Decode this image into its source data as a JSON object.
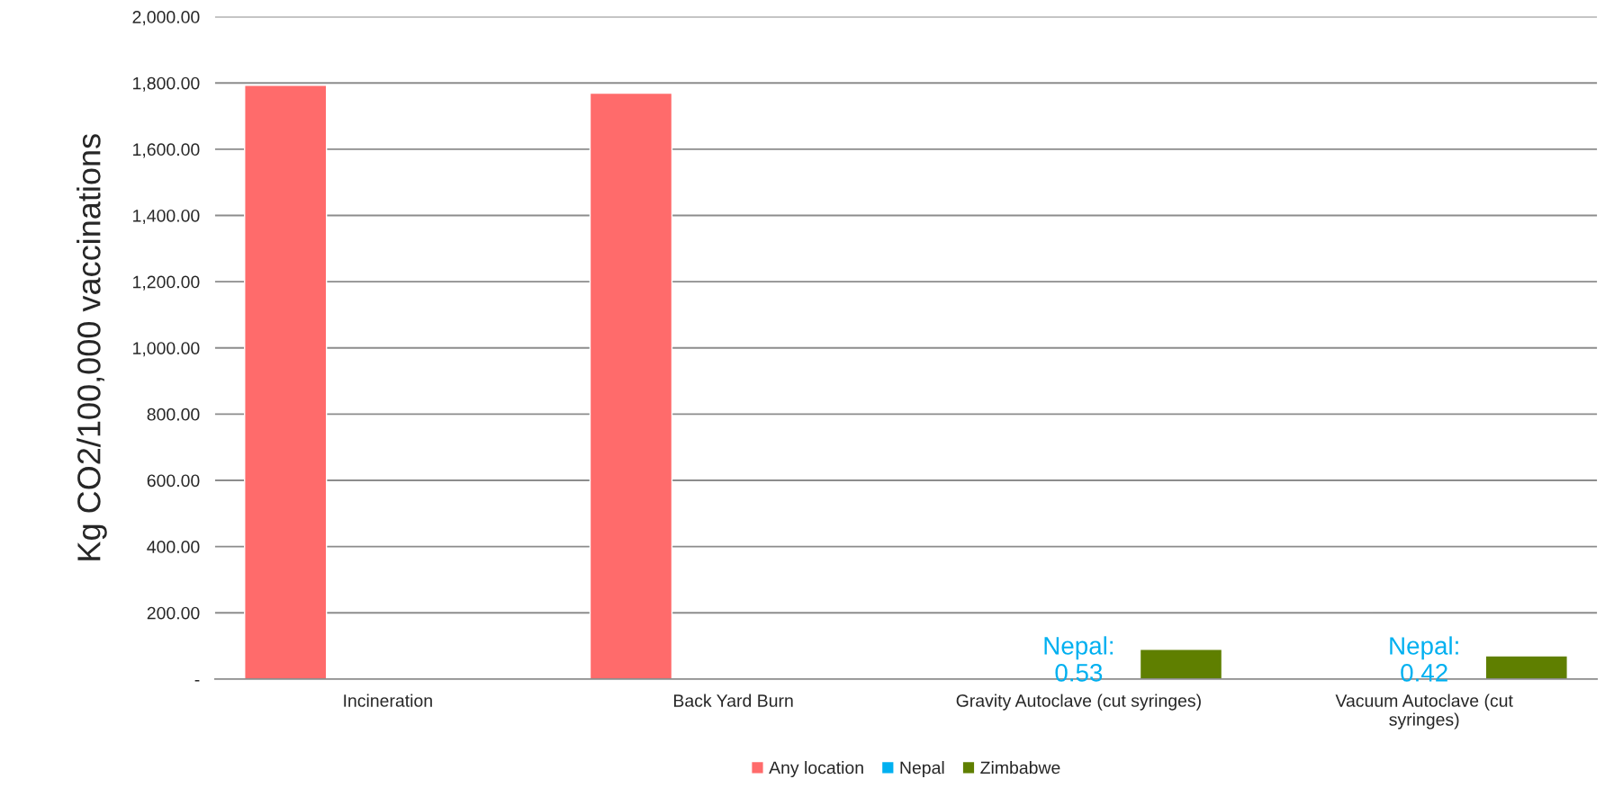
{
  "chart_data": {
    "type": "bar",
    "ylabel": "Kg CO2/100,000 vaccinations",
    "categories": [
      "Incineration",
      "Back Yard Burn",
      "Gravity Autoclave (cut syringes)",
      "Vacuum Autoclave (cut\nsyringes)"
    ],
    "series": [
      {
        "name": "Any location",
        "color": "#ff6b6b",
        "values": [
          1793,
          1769,
          null,
          null
        ]
      },
      {
        "name": "Nepal",
        "color": "#00b0f0",
        "values": [
          null,
          null,
          0.53,
          0.42
        ],
        "value_labels": [
          null,
          null,
          "Nepal:\n0.53",
          "Nepal:\n0.42"
        ]
      },
      {
        "name": "Zimbabwe",
        "color": "#5f7f00",
        "values": [
          null,
          null,
          90,
          70
        ]
      }
    ],
    "ylim": [
      0,
      2000
    ],
    "yticks": [
      {
        "value": 0,
        "label": "-"
      },
      {
        "value": 200,
        "label": "200.00"
      },
      {
        "value": 400,
        "label": "400.00"
      },
      {
        "value": 600,
        "label": "600.00"
      },
      {
        "value": 800,
        "label": "800.00"
      },
      {
        "value": 1000,
        "label": "1,000.00"
      },
      {
        "value": 1200,
        "label": "1,200.00"
      },
      {
        "value": 1400,
        "label": "1,400.00"
      },
      {
        "value": 1600,
        "label": "1,600.00"
      },
      {
        "value": 1800,
        "label": "1,800.00"
      },
      {
        "value": 2000,
        "label": "2,000.00"
      }
    ],
    "grid": "y",
    "legend": "bottom"
  }
}
